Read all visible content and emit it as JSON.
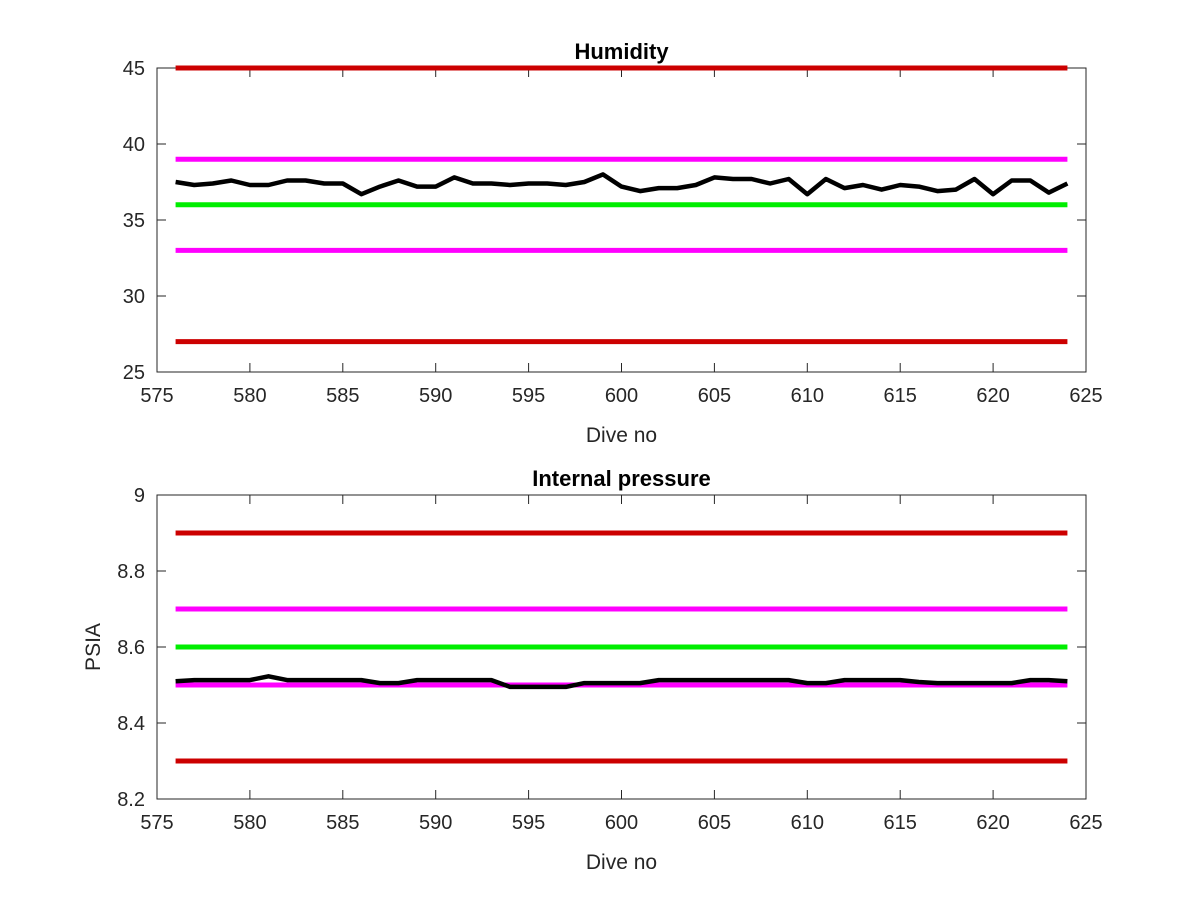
{
  "chart_data": [
    {
      "type": "line",
      "title": "Humidity",
      "xlabel": "Dive no",
      "ylabel": "",
      "xlim": [
        575,
        625
      ],
      "ylim": [
        25,
        45
      ],
      "xticks": [
        "575",
        "580",
        "585",
        "590",
        "595",
        "600",
        "605",
        "610",
        "615",
        "620",
        "625"
      ],
      "yticks": [
        "25",
        "30",
        "35",
        "40",
        "45"
      ],
      "thresholds": [
        {
          "value": 45,
          "color": "#cc0000"
        },
        {
          "value": 39,
          "color": "#ff00ff"
        },
        {
          "value": 36,
          "color": "#00ee00"
        },
        {
          "value": 33,
          "color": "#ff00ff"
        },
        {
          "value": 27,
          "color": "#cc0000"
        }
      ],
      "series": [
        {
          "color": "#000000",
          "x": [
            576,
            577,
            578,
            579,
            580,
            581,
            582,
            583,
            584,
            585,
            586,
            587,
            588,
            589,
            590,
            591,
            592,
            593,
            594,
            595,
            596,
            597,
            598,
            599,
            600,
            601,
            602,
            603,
            604,
            605,
            606,
            607,
            608,
            609,
            610,
            611,
            612,
            613,
            614,
            615,
            616,
            617,
            618,
            619,
            620,
            621,
            622,
            623,
            624
          ],
          "y": [
            37.5,
            37.3,
            37.4,
            37.6,
            37.3,
            37.3,
            37.6,
            37.6,
            37.4,
            37.4,
            36.7,
            37.2,
            37.6,
            37.2,
            37.2,
            37.8,
            37.4,
            37.4,
            37.3,
            37.4,
            37.4,
            37.3,
            37.5,
            38.0,
            37.2,
            36.9,
            37.1,
            37.1,
            37.3,
            37.8,
            37.7,
            37.7,
            37.4,
            37.7,
            36.7,
            37.7,
            37.1,
            37.3,
            37.0,
            37.3,
            37.2,
            36.9,
            37.0,
            37.7,
            36.7,
            37.6,
            37.6,
            36.8,
            37.4
          ]
        }
      ]
    },
    {
      "type": "line",
      "title": "Internal pressure",
      "xlabel": "Dive no",
      "ylabel": "PSIA",
      "xlim": [
        575,
        625
      ],
      "ylim": [
        8.2,
        9
      ],
      "xticks": [
        "575",
        "580",
        "585",
        "590",
        "595",
        "600",
        "605",
        "610",
        "615",
        "620",
        "625"
      ],
      "yticks": [
        "8.2",
        "8.4",
        "8.6",
        "8.8",
        "9"
      ],
      "thresholds": [
        {
          "value": 8.9,
          "color": "#cc0000"
        },
        {
          "value": 8.7,
          "color": "#ff00ff"
        },
        {
          "value": 8.6,
          "color": "#00ee00"
        },
        {
          "value": 8.5,
          "color": "#ff00ff"
        },
        {
          "value": 8.3,
          "color": "#cc0000"
        }
      ],
      "series": [
        {
          "color": "#000000",
          "x": [
            576,
            577,
            578,
            579,
            580,
            581,
            582,
            583,
            584,
            585,
            586,
            587,
            588,
            589,
            590,
            591,
            592,
            593,
            594,
            595,
            596,
            597,
            598,
            599,
            600,
            601,
            602,
            603,
            604,
            605,
            606,
            607,
            608,
            609,
            610,
            611,
            612,
            613,
            614,
            615,
            616,
            617,
            618,
            619,
            620,
            621,
            622,
            623,
            624
          ],
          "y": [
            8.51,
            8.513,
            8.513,
            8.513,
            8.513,
            8.523,
            8.513,
            8.513,
            8.513,
            8.513,
            8.513,
            8.505,
            8.505,
            8.513,
            8.513,
            8.513,
            8.513,
            8.513,
            8.495,
            8.495,
            8.495,
            8.495,
            8.505,
            8.505,
            8.505,
            8.505,
            8.513,
            8.513,
            8.513,
            8.513,
            8.513,
            8.513,
            8.513,
            8.513,
            8.505,
            8.505,
            8.513,
            8.513,
            8.513,
            8.513,
            8.508,
            8.505,
            8.505,
            8.505,
            8.505,
            8.505,
            8.513,
            8.513,
            8.51
          ]
        }
      ]
    }
  ]
}
